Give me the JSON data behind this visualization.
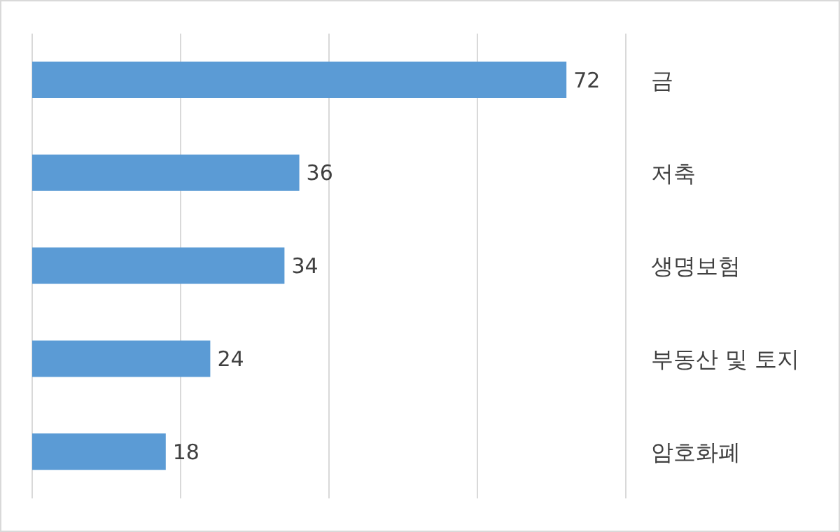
{
  "chart_data": {
    "type": "bar",
    "orientation": "horizontal",
    "categories": [
      "금",
      "저축",
      "생명보험",
      "부동산 및 토지",
      "암호화폐"
    ],
    "values": [
      72,
      36,
      34,
      24,
      18
    ],
    "color": "#5b9bd5",
    "xlim": [
      0,
      80
    ],
    "xticks": [
      {
        "value": 0,
        "label": null
      },
      {
        "value": 20,
        "label": null
      },
      {
        "value": 40,
        "label": null
      },
      {
        "value": 60,
        "label": null
      },
      {
        "value": 80,
        "label": null
      }
    ],
    "grid": "x",
    "tick_labels": "y",
    "data_labels": true
  }
}
